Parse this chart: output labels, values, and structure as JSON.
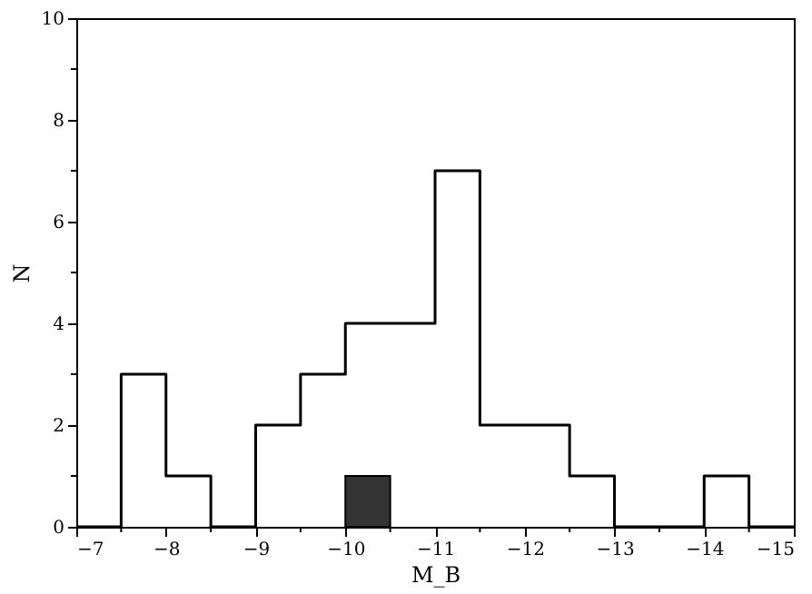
{
  "chart_data": {
    "type": "histogram",
    "xlabel": "M_B",
    "ylabel": "N",
    "xlim": [
      -7,
      -15
    ],
    "ylim": [
      0,
      10
    ],
    "xticks": [
      -7,
      {
        "value": -7.5,
        "label": null
      },
      -8,
      {
        "value": -8.5,
        "label": null
      },
      -9,
      {
        "value": -9.5,
        "label": null
      },
      -10,
      {
        "value": -10.5,
        "label": null
      },
      -11,
      {
        "value": -11.5,
        "label": null
      },
      -12,
      {
        "value": -12.5,
        "label": null
      },
      -13,
      {
        "value": -13.5,
        "label": null
      },
      -14,
      {
        "value": -14.5,
        "label": null
      },
      -15
    ],
    "yticks": [
      0,
      {
        "value": 1,
        "label": null
      },
      2,
      {
        "value": 3,
        "label": null
      },
      4,
      {
        "value": 5,
        "label": null
      },
      6,
      {
        "value": 7,
        "label": null
      },
      8,
      {
        "value": 9,
        "label": null
      },
      10
    ],
    "grid": false,
    "legend": false,
    "bins": [
      -7,
      -7.5,
      -8,
      -8.5,
      -9,
      -9.5,
      -10,
      -10.5,
      -11,
      -11.5,
      -12,
      -12.5,
      -13,
      -13.5,
      -14,
      -14.5,
      -15
    ],
    "series": [
      {
        "type": "histogram",
        "color": "#000000",
        "values": [
          0,
          3,
          1,
          0,
          2,
          3,
          4,
          4,
          7,
          2,
          2,
          1,
          0,
          0,
          1,
          0
        ]
      },
      {
        "type": "histogram",
        "color": "#333333",
        "bins": [
          -10,
          -10.5
        ],
        "values": [
          1
        ]
      }
    ]
  }
}
